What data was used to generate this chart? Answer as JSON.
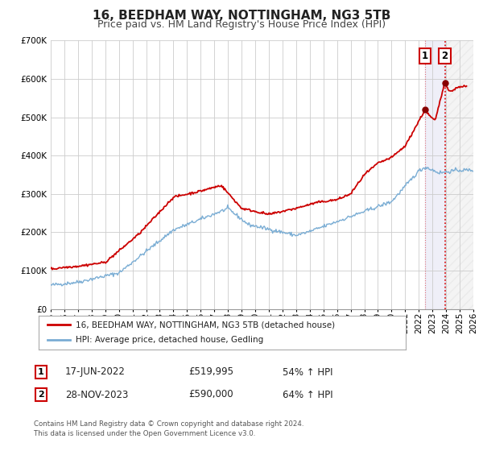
{
  "title": "16, BEEDHAM WAY, NOTTINGHAM, NG3 5TB",
  "subtitle": "Price paid vs. HM Land Registry's House Price Index (HPI)",
  "ylim": [
    0,
    700000
  ],
  "xlim": [
    1995,
    2026
  ],
  "yticks": [
    0,
    100000,
    200000,
    300000,
    400000,
    500000,
    600000,
    700000
  ],
  "ytick_labels": [
    "£0",
    "£100K",
    "£200K",
    "£300K",
    "£400K",
    "£500K",
    "£600K",
    "£700K"
  ],
  "xticks": [
    1995,
    1996,
    1997,
    1998,
    1999,
    2000,
    2001,
    2002,
    2003,
    2004,
    2005,
    2006,
    2007,
    2008,
    2009,
    2010,
    2011,
    2012,
    2013,
    2014,
    2015,
    2016,
    2017,
    2018,
    2019,
    2020,
    2021,
    2022,
    2023,
    2024,
    2025,
    2026
  ],
  "line1_color": "#cc0000",
  "line2_color": "#7aadd4",
  "marker_color": "#880000",
  "sale1_x": 2022.46,
  "sale1_y": 519995,
  "sale2_x": 2023.91,
  "sale2_y": 590000,
  "sale1_date": "17-JUN-2022",
  "sale1_price": "£519,995",
  "sale1_pct": "54% ↑ HPI",
  "sale2_date": "28-NOV-2023",
  "sale2_price": "£590,000",
  "sale2_pct": "64% ↑ HPI",
  "legend_line1": "16, BEEDHAM WAY, NOTTINGHAM, NG3 5TB (detached house)",
  "legend_line2": "HPI: Average price, detached house, Gedling",
  "footnote": "Contains HM Land Registry data © Crown copyright and database right 2024.\nThis data is licensed under the Open Government Licence v3.0.",
  "bg_color": "#ffffff",
  "grid_color": "#cccccc",
  "title_fontsize": 11,
  "subtitle_fontsize": 9,
  "tick_fontsize": 7.5
}
